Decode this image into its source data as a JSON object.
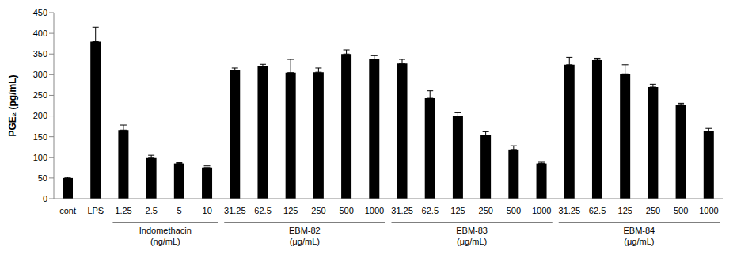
{
  "chart_data": {
    "type": "bar",
    "y_label": "PGE₂ (pg/mL)",
    "categories": [
      "cont",
      "LPS",
      "1.25",
      "2.5",
      "5",
      "10",
      "31.25",
      "62.5",
      "125",
      "250",
      "500",
      "1000",
      "31.25",
      "62.5",
      "125",
      "250",
      "500",
      "1000",
      "31.25",
      "62.5",
      "125",
      "250",
      "500",
      "1000"
    ],
    "values": [
      50,
      380,
      166,
      100,
      85,
      75,
      311,
      320,
      305,
      306,
      350,
      337,
      327,
      243,
      199,
      153,
      119,
      85,
      324,
      335,
      302,
      270,
      226,
      163
    ],
    "errors": [
      2,
      35,
      12,
      5,
      2,
      4,
      5,
      5,
      32,
      10,
      10,
      9,
      10,
      18,
      9,
      9,
      9,
      3,
      18,
      5,
      22,
      7,
      5,
      7
    ],
    "groups": [
      {
        "label": [
          "Indomethacin",
          "(ng/mL)"
        ],
        "first": 2,
        "count": 4
      },
      {
        "label": [
          "EBM-82",
          "(μg/mL)"
        ],
        "first": 6,
        "count": 6
      },
      {
        "label": [
          "EBM-83",
          "(μg/mL)"
        ],
        "first": 12,
        "count": 6
      },
      {
        "label": [
          "EBM-84",
          "(μg/mL)"
        ],
        "first": 18,
        "count": 6
      }
    ],
    "color": "#000000",
    "ylim": [
      0,
      450
    ],
    "yticks": [
      0,
      50,
      100,
      150,
      200,
      250,
      300,
      350,
      400,
      450
    ],
    "grid": false
  }
}
